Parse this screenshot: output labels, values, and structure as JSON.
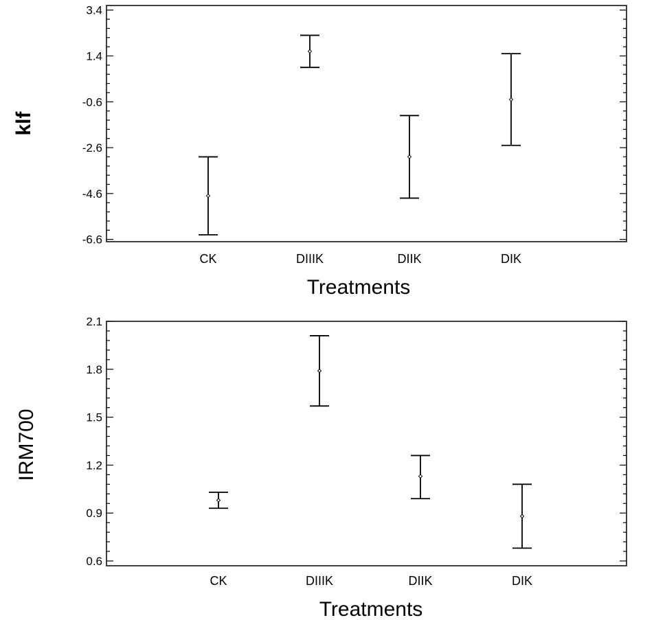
{
  "chart_data": [
    {
      "type": "errorbar",
      "title": "",
      "xlabel": "Treatments",
      "ylabel": "klf",
      "categories": [
        "CK",
        "DIIIK",
        "DIIK",
        "DIK"
      ],
      "series": [
        {
          "name": "klf",
          "mean": [
            -4.7,
            1.6,
            -3.0,
            -0.5
          ],
          "lower": [
            -6.4,
            0.9,
            -4.8,
            -2.5
          ],
          "upper": [
            -3.0,
            2.3,
            -1.2,
            1.5
          ]
        }
      ],
      "yticks": [
        3.4,
        1.4,
        -0.6,
        -2.6,
        -4.6,
        -6.6
      ],
      "ytick_labels": [
        "3.4",
        "1.4",
        "-0.6",
        "-2.6",
        "-4.6",
        "-6.6"
      ],
      "ylim": [
        -6.7,
        3.6
      ],
      "grid": false
    },
    {
      "type": "errorbar",
      "title": "",
      "xlabel": "Treatments",
      "ylabel": "IRM700",
      "categories": [
        "CK",
        "DIIIK",
        "DIIK",
        "DIK"
      ],
      "series": [
        {
          "name": "IRM700",
          "mean": [
            0.98,
            1.79,
            1.13,
            0.88
          ],
          "lower": [
            0.93,
            1.57,
            0.99,
            0.68
          ],
          "upper": [
            1.03,
            2.01,
            1.26,
            1.08
          ]
        }
      ],
      "yticks": [
        2.1,
        1.8,
        1.5,
        1.2,
        0.9,
        0.6
      ],
      "ytick_labels": [
        "2.1",
        "1.8",
        "1.5",
        "1.2",
        "0.9",
        "0.6"
      ],
      "ylim": [
        0.57,
        2.1
      ],
      "grid": false
    }
  ]
}
